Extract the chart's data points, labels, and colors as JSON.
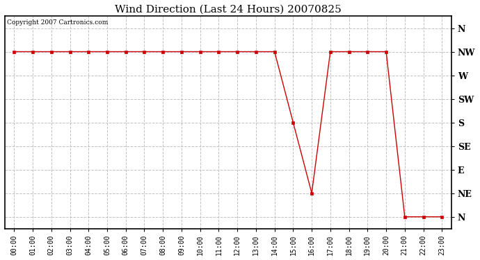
{
  "title": "Wind Direction (Last 24 Hours) 20070825",
  "copyright_text": "Copyright 2007 Cartronics.com",
  "line_color": "#cc0000",
  "marker_color": "#cc0000",
  "bg_color": "#ffffff",
  "grid_color": "#bbbbbb",
  "ytick_labels": [
    "N",
    "NW",
    "W",
    "SW",
    "S",
    "SE",
    "E",
    "NE",
    "N"
  ],
  "ytick_values": [
    8,
    7,
    6,
    5,
    4,
    3,
    2,
    1,
    0
  ],
  "hours": [
    0,
    1,
    2,
    3,
    4,
    5,
    6,
    7,
    8,
    9,
    10,
    11,
    12,
    13,
    14,
    15,
    16,
    17,
    18,
    19,
    20,
    21,
    22,
    23
  ],
  "wind_directions": [
    7,
    7,
    7,
    7,
    7,
    7,
    7,
    7,
    7,
    7,
    7,
    7,
    7,
    7,
    7,
    4,
    1,
    7,
    7,
    7,
    7,
    0,
    0,
    0
  ],
  "xlim": [
    -0.5,
    23.5
  ],
  "ylim": [
    -0.5,
    8.5
  ]
}
